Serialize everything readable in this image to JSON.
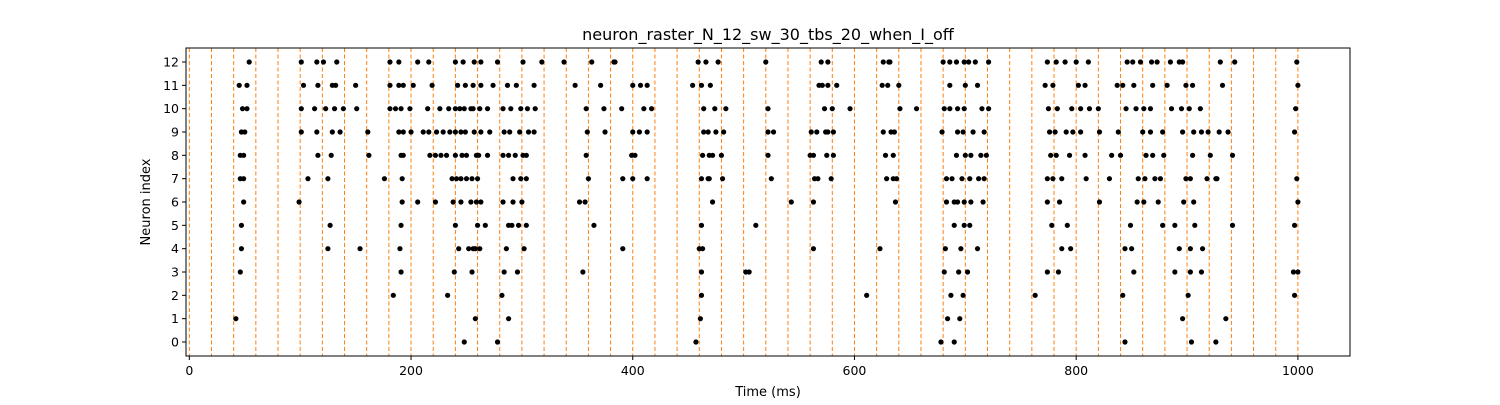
{
  "chart_data": {
    "type": "scatter",
    "title": "neuron_raster_N_12_sw_30_tbs_20_when_I_off",
    "xlabel": "Time (ms)",
    "ylabel": "Neuron index",
    "xlim": [
      -3,
      1047
    ],
    "ylim": [
      -0.6,
      12.6
    ],
    "xticks": [
      0,
      200,
      400,
      600,
      800,
      1000
    ],
    "xtick_labels": [
      "0",
      "200",
      "400",
      "600",
      "800",
      "1000"
    ],
    "yticks": [
      0,
      1,
      2,
      3,
      4,
      5,
      6,
      7,
      8,
      9,
      10,
      11,
      12
    ],
    "ytick_labels": [
      "0",
      "1",
      "2",
      "3",
      "4",
      "5",
      "6",
      "7",
      "8",
      "9",
      "10",
      "11",
      "12"
    ],
    "grid": false,
    "legend": "none",
    "series": [
      {
        "kind": "spikes",
        "color": "#000000",
        "spikes": [
          [
            0,
            [
              248,
              278,
              457,
              678,
              690,
              844,
              904,
              926
            ]
          ],
          [
            1,
            [
              42,
              258,
              288,
              461,
              684,
              695,
              896,
              935
            ]
          ],
          [
            2,
            [
              184,
              233,
              282,
              462,
              611,
              687,
              698,
              763,
              842,
              901,
              997
            ]
          ],
          [
            3,
            [
              46,
              191,
              239,
              255,
              284,
              296,
              355,
              462,
              502,
              505,
              681,
              694,
              702,
              774,
              784,
              852,
              889,
              903,
              913,
              996,
              1000
            ]
          ],
          [
            4,
            [
              47,
              125,
              154,
              190,
              243,
              252,
              256,
              258,
              262,
              286,
              302,
              391,
              460,
              463,
              563,
              623,
              682,
              696,
              711,
              787,
              795,
              844,
              850,
              893,
              903,
              914
            ]
          ],
          [
            5,
            [
              47,
              127,
              191,
              240,
              260,
              267,
              288,
              291,
              297,
              304,
              365,
              462,
              511,
              690,
              699,
              704,
              778,
              792,
              849,
              878,
              889,
              907,
              941,
              997
            ]
          ],
          [
            6,
            [
              49,
              99,
              192,
              206,
              222,
              238,
              245,
              254,
              259,
              263,
              283,
              292,
              300,
              352,
              357,
              472,
              543,
              563,
              637,
              683,
              690,
              693,
              699,
              705,
              716,
              774,
              785,
              821,
              855,
              861,
              874,
              897,
              906,
              1000
            ]
          ],
          [
            7,
            [
              46,
              49,
              107,
              125,
              176,
              192,
              237,
              241,
              245,
              250,
              255,
              260,
              292,
              299,
              304,
              360,
              391,
              400,
              413,
              462,
              468,
              469,
              481,
              525,
              564,
              567,
              579,
              629,
              635,
              638,
              683,
              688,
              697,
              704,
              712,
              717,
              774,
              779,
              787,
              809,
              830,
              856,
              862,
              871,
              876,
              899,
              903,
              918,
              926,
              927,
              999
            ]
          ],
          [
            8,
            [
              46,
              49,
              116,
              128,
              162,
              191,
              193,
              217,
              222,
              227,
              232,
              240,
              246,
              250,
              259,
              261,
              269,
              283,
              288,
              294,
              301,
              304,
              358,
              399,
              402,
              463,
              469,
              472,
              480,
              522,
              560,
              563,
              575,
              581,
              628,
              635,
              692,
              700,
              705,
              714,
              719,
              777,
              782,
              794,
              808,
              832,
              840,
              863,
              869,
              879,
              905,
              921,
              941
            ]
          ],
          [
            9,
            [
              47,
              50,
              101,
              115,
              129,
              136,
              161,
              189,
              193,
              200,
              211,
              216,
              223,
              229,
              235,
              240,
              245,
              249,
              257,
              263,
              271,
              284,
              289,
              298,
              306,
              311,
              359,
              375,
              400,
              406,
              413,
              464,
              468,
              475,
              482,
              522,
              527,
              561,
              566,
              574,
              576,
              581,
              626,
              633,
              636,
              679,
              693,
              698,
              707,
              717,
              776,
              781,
              791,
              797,
              804,
              821,
              838,
              860,
              867,
              878,
              896,
              906,
              913,
              919,
              929,
              937,
              997
            ]
          ],
          [
            10,
            [
              48,
              52,
              101,
              113,
              123,
              131,
              139,
              151,
              181,
              186,
              191,
              199,
              215,
              226,
              234,
              240,
              244,
              248,
              254,
              256,
              262,
              269,
              283,
              290,
              299,
              305,
              312,
              358,
              374,
              390,
              410,
              417,
              464,
              474,
              484,
              522,
              573,
              580,
              596,
              641,
              656,
              681,
              686,
              693,
              699,
              715,
              721,
              775,
              783,
              796,
              804,
              812,
              820,
              845,
              854,
              861,
              867,
              886,
              895,
              902,
              912,
              998
            ]
          ],
          [
            11,
            [
              45,
              52,
              103,
              116,
              129,
              132,
              150,
              181,
              189,
              193,
              202,
              219,
              242,
              249,
              256,
              263,
              274,
              287,
              295,
              311,
              348,
              371,
              400,
              407,
              413,
              454,
              462,
              470,
              568,
              571,
              576,
              584,
              625,
              630,
              640,
              686,
              700,
              711,
              772,
              779,
              802,
              808,
              837,
              842,
              852,
              869,
              882,
              899,
              905,
              932,
              1000
            ]
          ],
          [
            12,
            [
              54,
              101,
              115,
              121,
              133,
              181,
              189,
              206,
              216,
              240,
              247,
              257,
              263,
              278,
              301,
              318,
              338,
              363,
              383,
              384,
              459,
              466,
              477,
              520,
              570,
              576,
              626,
              631,
              632,
              680,
              686,
              692,
              699,
              703,
              709,
              721,
              774,
              782,
              790,
              800,
              811,
              846,
              851,
              858,
              868,
              873,
              885,
              893,
              896,
              930,
              943,
              999
            ]
          ]
        ]
      },
      {
        "kind": "vertical-dashed-lines",
        "color": "#ff7f0e",
        "x": [
          0,
          20,
          40,
          60,
          80,
          100,
          120,
          140,
          160,
          180,
          200,
          220,
          240,
          260,
          280,
          300,
          320,
          340,
          360,
          380,
          400,
          420,
          440,
          460,
          480,
          500,
          520,
          540,
          560,
          580,
          600,
          620,
          640,
          660,
          680,
          700,
          720,
          740,
          760,
          780,
          800,
          820,
          840,
          860,
          880,
          900,
          920,
          940,
          960,
          980,
          1000
        ]
      }
    ]
  }
}
